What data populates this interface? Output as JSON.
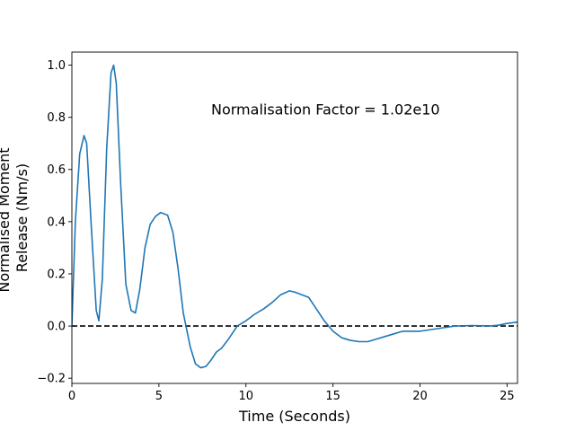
{
  "chart_data": {
    "type": "line",
    "title": "",
    "xlabel": "Time (Seconds)",
    "ylabel": [
      "Normalised Moment",
      "Release (Nm/s)"
    ],
    "xlim": [
      0,
      25.6
    ],
    "ylim": [
      -0.22,
      1.05
    ],
    "xticks": [
      0,
      5,
      10,
      15,
      20,
      25
    ],
    "yticks": [
      -0.2,
      0.0,
      0.2,
      0.4,
      0.6,
      0.8,
      1.0
    ],
    "xtick_labels": [
      "0",
      "5",
      "10",
      "15",
      "20",
      "25"
    ],
    "ytick_labels": [
      "−0.2",
      "0.0",
      "0.2",
      "0.4",
      "0.6",
      "0.8",
      "1.0"
    ],
    "grid": false,
    "annotation": {
      "text": "Normalisation Factor = 1.02e10",
      "x": 8.0,
      "y": 0.81
    },
    "reference_line": {
      "y": 0,
      "style": "dashed",
      "color": "#000000"
    },
    "series": [
      {
        "color": "#1f77b4",
        "x": [
          0.0,
          0.2,
          0.45,
          0.7,
          0.85,
          1.1,
          1.4,
          1.55,
          1.75,
          2.0,
          2.25,
          2.4,
          2.55,
          2.8,
          3.1,
          3.4,
          3.65,
          3.9,
          4.2,
          4.5,
          4.8,
          5.1,
          5.5,
          5.8,
          6.1,
          6.4,
          6.8,
          7.1,
          7.4,
          7.7,
          8.0,
          8.3,
          8.6,
          9.0,
          9.5,
          10.0,
          10.5,
          11.0,
          11.5,
          12.0,
          12.5,
          12.8,
          13.2,
          13.6,
          14.0,
          14.5,
          15.0,
          15.5,
          16.0,
          16.5,
          17.0,
          17.5,
          18.0,
          18.5,
          19.0,
          19.5,
          20.0,
          21.0,
          22.0,
          23.0,
          24.0,
          24.5,
          25.0,
          25.6
        ],
        "y": [
          0.0,
          0.4,
          0.66,
          0.73,
          0.7,
          0.4,
          0.06,
          0.02,
          0.18,
          0.68,
          0.97,
          1.0,
          0.93,
          0.55,
          0.16,
          0.06,
          0.05,
          0.14,
          0.3,
          0.39,
          0.42,
          0.435,
          0.425,
          0.36,
          0.22,
          0.05,
          -0.08,
          -0.145,
          -0.16,
          -0.155,
          -0.13,
          -0.1,
          -0.085,
          -0.05,
          0.0,
          0.02,
          0.045,
          0.065,
          0.09,
          0.12,
          0.135,
          0.13,
          0.12,
          0.11,
          0.07,
          0.02,
          -0.02,
          -0.045,
          -0.055,
          -0.06,
          -0.06,
          -0.05,
          -0.04,
          -0.03,
          -0.02,
          -0.02,
          -0.02,
          -0.01,
          0.0,
          0.002,
          0.0,
          0.003,
          0.01,
          0.015
        ]
      }
    ]
  }
}
